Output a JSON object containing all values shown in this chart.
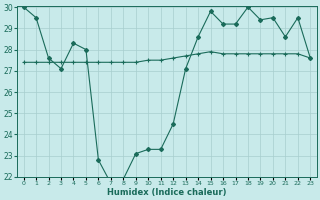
{
  "xlabel": "Humidex (Indice chaleur)",
  "x_values": [
    0,
    1,
    2,
    3,
    4,
    5,
    6,
    7,
    8,
    9,
    10,
    11,
    12,
    13,
    14,
    15,
    16,
    17,
    18,
    19,
    20,
    21,
    22,
    23
  ],
  "line1_y": [
    30.0,
    29.5,
    27.6,
    27.1,
    28.3,
    28.0,
    22.8,
    21.7,
    21.9,
    23.1,
    23.3,
    23.3,
    24.5,
    27.1,
    28.6,
    29.8,
    29.2,
    29.2,
    30.0,
    29.4,
    29.5,
    28.6,
    29.5,
    27.6
  ],
  "line2_y": [
    27.4,
    27.4,
    27.4,
    27.4,
    27.4,
    27.4,
    27.4,
    27.4,
    27.4,
    27.4,
    27.5,
    27.5,
    27.6,
    27.7,
    27.8,
    27.9,
    27.8,
    27.8,
    27.8,
    27.8,
    27.8,
    27.8,
    27.8,
    27.6
  ],
  "line_color": "#1a6b5a",
  "bg_color": "#c8eaea",
  "grid_color": "#a8cece",
  "ylim": [
    22,
    30
  ],
  "yticks": [
    22,
    23,
    24,
    25,
    26,
    27,
    28,
    29,
    30
  ],
  "xlim": [
    -0.5,
    23.5
  ],
  "xtick_labels": [
    "0",
    "1",
    "2",
    "3",
    "4",
    "5",
    "6",
    "7",
    "8",
    "9",
    "10",
    "11",
    "12",
    "13",
    "14",
    "15",
    "16",
    "17",
    "18",
    "19",
    "20",
    "21",
    "22",
    "23"
  ]
}
